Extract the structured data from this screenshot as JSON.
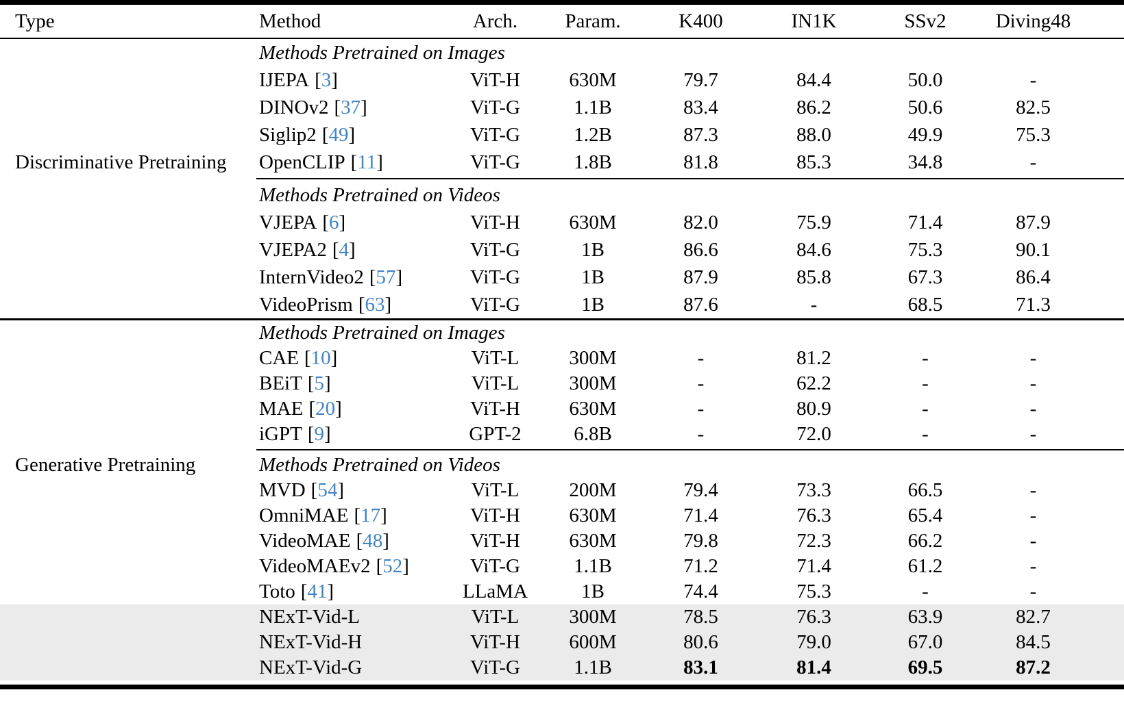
{
  "theme": {
    "ink": "#000000",
    "rule": "#000000",
    "link_blue": "#4183C4",
    "highlight_gray": "#EBEBEB"
  },
  "table": {
    "columns": [
      "Type",
      "Method",
      "Arch.",
      "Param.",
      "K400",
      "IN1K",
      "SSv2",
      "Diving48"
    ],
    "cite_open": "[",
    "cite_close": "]",
    "sections": [
      {
        "type_label": "Discriminative Pretraining",
        "subsections": [
          {
            "header": "Methods Pretrained on Images",
            "rows": [
              {
                "method": "IJEPA",
                "ref": "3",
                "arch": "ViT-H",
                "param": "630M",
                "k400": "79.7",
                "in1k": "84.4",
                "ssv2": "50.0",
                "diving48": "-"
              },
              {
                "method": "DINOv2",
                "ref": "37",
                "arch": "ViT-G",
                "param": "1.1B",
                "k400": "83.4",
                "in1k": "86.2",
                "ssv2": "50.6",
                "diving48": "82.5"
              },
              {
                "method": "Siglip2",
                "ref": "49",
                "arch": "ViT-G",
                "param": "1.2B",
                "k400": "87.3",
                "in1k": "88.0",
                "ssv2": "49.9",
                "diving48": "75.3"
              },
              {
                "method": "OpenCLIP",
                "ref": "11",
                "arch": "ViT-G",
                "param": "1.8B",
                "k400": "81.8",
                "in1k": "85.3",
                "ssv2": "34.8",
                "diving48": "-"
              }
            ]
          },
          {
            "header": "Methods Pretrained on Videos",
            "rows": [
              {
                "method": "VJEPA",
                "ref": "6",
                "arch": "ViT-H",
                "param": "630M",
                "k400": "82.0",
                "in1k": "75.9",
                "ssv2": "71.4",
                "diving48": "87.9"
              },
              {
                "method": "VJEPA2",
                "ref": "4",
                "arch": "ViT-G",
                "param": "1B",
                "k400": "86.6",
                "in1k": "84.6",
                "ssv2": "75.3",
                "diving48": "90.1"
              },
              {
                "method": "InternVideo2",
                "ref": "57",
                "arch": "ViT-G",
                "param": "1B",
                "k400": "87.9",
                "in1k": "85.8",
                "ssv2": "67.3",
                "diving48": "86.4"
              },
              {
                "method": "VideoPrism",
                "ref": "63",
                "arch": "ViT-G",
                "param": "1B",
                "k400": "87.6",
                "in1k": "-",
                "ssv2": "68.5",
                "diving48": "71.3"
              }
            ]
          }
        ]
      },
      {
        "type_label": "Generative Pretraining",
        "subsections": [
          {
            "header": "Methods Pretrained on Images",
            "rows": [
              {
                "method": "CAE",
                "ref": "10",
                "arch": "ViT-L",
                "param": "300M",
                "k400": "-",
                "in1k": "81.2",
                "ssv2": "-",
                "diving48": "-"
              },
              {
                "method": "BEiT",
                "ref": "5",
                "arch": "ViT-L",
                "param": "300M",
                "k400": "-",
                "in1k": "62.2",
                "ssv2": "-",
                "diving48": "-"
              },
              {
                "method": "MAE",
                "ref": "20",
                "arch": "ViT-H",
                "param": "630M",
                "k400": "-",
                "in1k": "80.9",
                "ssv2": "-",
                "diving48": "-"
              },
              {
                "method": "iGPT",
                "ref": "9",
                "arch": "GPT-2",
                "param": "6.8B",
                "k400": "-",
                "in1k": "72.0",
                "ssv2": "-",
                "diving48": "-"
              }
            ]
          },
          {
            "header": "Methods Pretrained on Videos",
            "rows": [
              {
                "method": "MVD",
                "ref": "54",
                "arch": "ViT-L",
                "param": "200M",
                "k400": "79.4",
                "in1k": "73.3",
                "ssv2": "66.5",
                "diving48": "-"
              },
              {
                "method": "OmniMAE",
                "ref": "17",
                "arch": "ViT-H",
                "param": "630M",
                "k400": "71.4",
                "in1k": "76.3",
                "ssv2": "65.4",
                "diving48": "-"
              },
              {
                "method": "VideoMAE",
                "ref": "48",
                "arch": "ViT-H",
                "param": "630M",
                "k400": "79.8",
                "in1k": "72.3",
                "ssv2": "66.2",
                "diving48": "-"
              },
              {
                "method": "VideoMAEv2",
                "ref": "52",
                "arch": "ViT-G",
                "param": "1.1B",
                "k400": "71.2",
                "in1k": "71.4",
                "ssv2": "61.2",
                "diving48": "-"
              },
              {
                "method": "Toto",
                "ref": "41",
                "arch": "LLaMA",
                "param": "1B",
                "k400": "74.4",
                "in1k": "75.3",
                "ssv2": "-",
                "diving48": "-"
              },
              {
                "method": "NExT-Vid-L",
                "arch": "ViT-L",
                "param": "300M",
                "k400": "78.5",
                "in1k": "76.3",
                "ssv2": "63.9",
                "diving48": "82.7",
                "highlight": true
              },
              {
                "method": "NExT-Vid-H",
                "arch": "ViT-H",
                "param": "600M",
                "k400": "80.6",
                "in1k": "79.0",
                "ssv2": "67.0",
                "diving48": "84.5",
                "highlight": true
              },
              {
                "method": "NExT-Vid-G",
                "arch": "ViT-G",
                "param": "1.1B",
                "k400": "83.1",
                "in1k": "81.4",
                "ssv2": "69.5",
                "diving48": "87.2",
                "highlight": true,
                "bold_scores": true
              }
            ]
          }
        ]
      }
    ]
  }
}
